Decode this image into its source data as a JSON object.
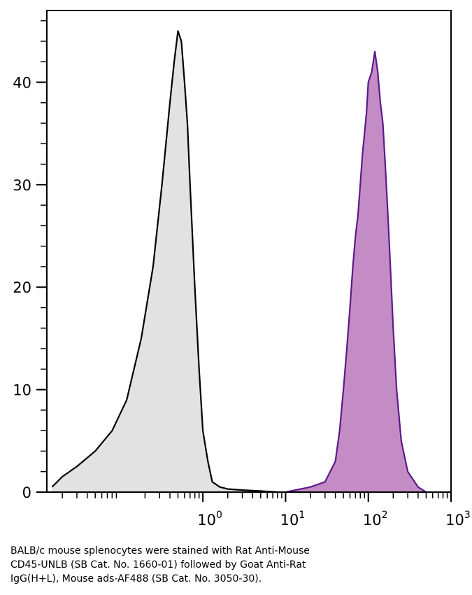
{
  "chart_data": {
    "type": "area",
    "title": "",
    "xlabel": "",
    "ylabel": "",
    "x_scale": "log",
    "xlim": [
      0.013,
      1000
    ],
    "ylim": [
      0,
      47
    ],
    "y_ticks": [
      0,
      10,
      20,
      30,
      40
    ],
    "x_ticks": [
      {
        "value": 1,
        "base": "10",
        "exp": "0"
      },
      {
        "value": 10,
        "base": "10",
        "exp": "1"
      },
      {
        "value": 100,
        "base": "10",
        "exp": "2"
      },
      {
        "value": 1000,
        "base": "10",
        "exp": "3"
      }
    ],
    "grid": false,
    "legend": "none",
    "series": [
      {
        "fill": "#e2e2e2",
        "stroke": "#000000",
        "x": [
          0.015,
          0.02,
          0.03,
          0.05,
          0.08,
          0.12,
          0.18,
          0.25,
          0.32,
          0.4,
          0.45,
          0.5,
          0.55,
          0.6,
          0.65,
          0.7,
          0.8,
          0.9,
          1.0,
          1.15,
          1.3,
          1.6,
          2.0,
          3.0,
          5.0,
          8.0
        ],
        "y": [
          0.5,
          1.5,
          2.5,
          4,
          6,
          9,
          15,
          22,
          30,
          38,
          42,
          45,
          44,
          40,
          36,
          30,
          20,
          12,
          6,
          3,
          1,
          0.5,
          0.3,
          0.2,
          0.1,
          0
        ]
      },
      {
        "fill": "#c48cc4",
        "stroke": "#5b1a8b",
        "x": [
          10,
          20,
          30,
          40,
          45,
          50,
          55,
          60,
          65,
          70,
          75,
          80,
          85,
          90,
          95,
          100,
          110,
          120,
          130,
          140,
          150,
          160,
          170,
          180,
          200,
          220,
          250,
          300,
          400,
          500
        ],
        "y": [
          0,
          0.5,
          1,
          3,
          6,
          10,
          14,
          18,
          22,
          25,
          27,
          30,
          33,
          35,
          37,
          40,
          41,
          43,
          41,
          38,
          36,
          32,
          28,
          24,
          16,
          10,
          5,
          2,
          0.5,
          0
        ]
      }
    ],
    "caption": [
      "BALB/c mouse splenocytes were stained with Rat Anti-Mouse",
      "CD45-UNLB (SB Cat. No. 1660-01) followed by Goat Anti-Rat",
      "IgG(H+L), Mouse ads-AF488 (SB Cat. No. 3050-30)."
    ]
  }
}
